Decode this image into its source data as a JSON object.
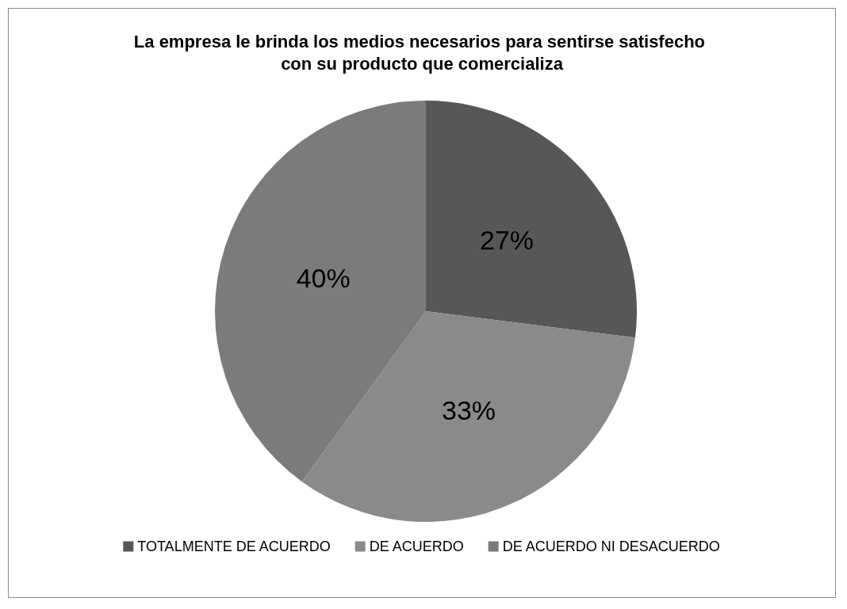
{
  "chart_data": {
    "type": "pie",
    "title": "La empresa le brinda los medios necesarios para sentirse satisfecho con su producto que comercializa",
    "categories": [
      "TOTALMENTE DE ACUERDO",
      "DE ACUERDO",
      "DE ACUERDO NI DESACUERDO"
    ],
    "values": [
      27,
      33,
      40
    ],
    "value_labels": [
      "27%",
      "33%",
      "40%"
    ],
    "colors": [
      "#575757",
      "#8a8a8a",
      "#7b7b7b"
    ],
    "legend": "bottom"
  }
}
